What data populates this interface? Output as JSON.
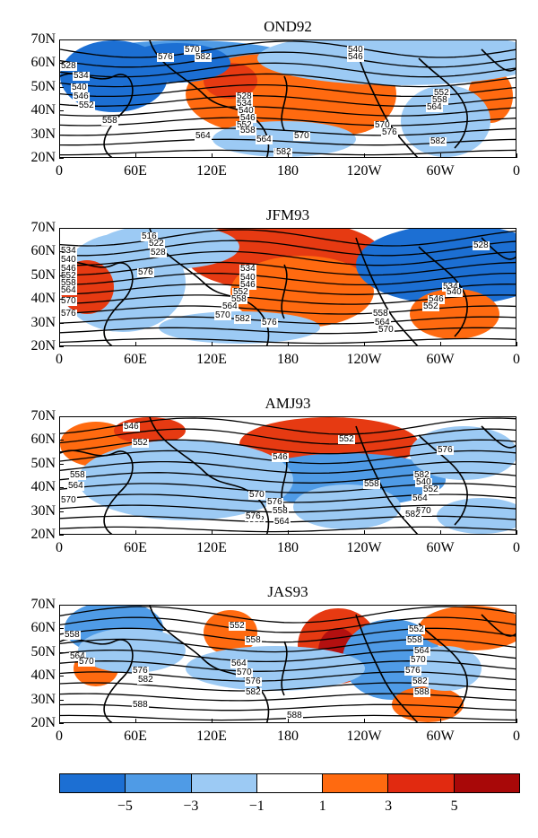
{
  "panels": [
    {
      "title": "OND92",
      "contours": [
        "528",
        "534",
        "540",
        "546",
        "552",
        "558",
        "564",
        "570",
        "576",
        "582",
        "528",
        "534",
        "540",
        "546",
        "552",
        "558",
        "564",
        "570",
        "576",
        "582",
        "540",
        "546",
        "552",
        "558",
        "564",
        "570",
        "576",
        "582"
      ]
    },
    {
      "title": "JFM93",
      "contours": [
        "516",
        "522",
        "528",
        "534",
        "540",
        "546",
        "552",
        "558",
        "564",
        "570",
        "576",
        "582",
        "528",
        "534",
        "540",
        "546",
        "552",
        "558",
        "564",
        "570",
        "576",
        "534",
        "540",
        "546",
        "552",
        "558",
        "564",
        "570",
        "576"
      ]
    },
    {
      "title": "AMJ93",
      "contours": [
        "546",
        "552",
        "558",
        "564",
        "570",
        "576",
        "582",
        "546",
        "552",
        "558",
        "564",
        "570",
        "576",
        "582",
        "540",
        "552",
        "558",
        "564",
        "570",
        "576",
        "582"
      ]
    },
    {
      "title": "JAS93",
      "contours": [
        "558",
        "564",
        "570",
        "576",
        "582",
        "588",
        "552",
        "558",
        "564",
        "570",
        "576",
        "582",
        "588",
        "552",
        "558",
        "564",
        "570",
        "576",
        "582",
        "588"
      ]
    }
  ],
  "y_axis": [
    "70N",
    "60N",
    "50N",
    "40N",
    "30N",
    "20N"
  ],
  "x_axis": [
    "0",
    "60E",
    "120E",
    "180",
    "120W",
    "60W",
    "0"
  ],
  "colorbar": {
    "labels": [
      "−5",
      "−3",
      "−1",
      "1",
      "3",
      "5"
    ],
    "colors": [
      "#1c6fd3",
      "#4f9be6",
      "#9ccaf4",
      "#ffffff",
      "#ff6a10",
      "#e12a10",
      "#a80808"
    ]
  },
  "colors": {
    "pos_light": "#ff6a10",
    "pos_mid": "#e63a12",
    "pos_dark": "#b31010",
    "neg_light": "#9ccaf4",
    "neg_mid": "#4f9be6",
    "neg_dark": "#1c6fd3"
  }
}
